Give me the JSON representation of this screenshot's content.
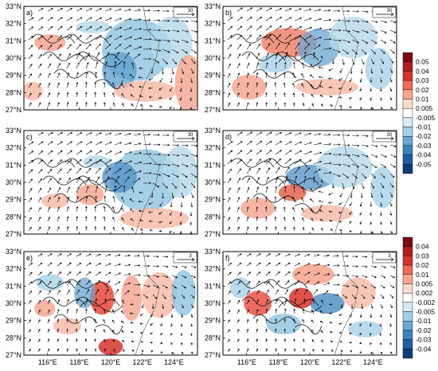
{
  "panels": [
    {
      "label": "a)",
      "ref_vector": "30",
      "pattern": "cyclone-large"
    },
    {
      "label": "b)",
      "ref_vector": "30",
      "pattern": "cyclone-small"
    },
    {
      "label": "c)",
      "ref_vector": "30",
      "pattern": "cyclone-large"
    },
    {
      "label": "d)",
      "ref_vector": "30",
      "pattern": "cyclone-small"
    },
    {
      "label": "e)",
      "ref_vector": "3",
      "pattern": "eddy"
    },
    {
      "label": "f)",
      "ref_vector": "3",
      "pattern": "eddy"
    }
  ],
  "lat_labels": [
    "33°N",
    "32°N",
    "31°N",
    "30°N",
    "29°N",
    "28°N",
    "27°N"
  ],
  "lon_labels": [
    "116°E",
    "118°E",
    "120°E",
    "122°E",
    "124°E"
  ],
  "colorbar_top": {
    "labels": [
      "0.05",
      "0.04",
      "0.03",
      "0.02",
      "0.01",
      "0.005",
      "-0.005",
      "-0.01",
      "-0.02",
      "-0.03",
      "-0.04",
      "-0.05"
    ],
    "colors": [
      "#7a0a0f",
      "#b41b1f",
      "#d8322c",
      "#ef6a55",
      "#f8a68c",
      "#fddbc8",
      "#ffffff",
      "#d6ebf5",
      "#a3cfe4",
      "#69a8d0",
      "#3b82bc",
      "#1f5ea6",
      "#0d3d7a"
    ]
  },
  "colorbar_bottom": {
    "labels": [
      "0.04",
      "0.03",
      "0.02",
      "0.01",
      "0.005",
      "0.002",
      "-0.002",
      "-0.005",
      "-0.01",
      "-0.02",
      "-0.03",
      "-0.04"
    ],
    "colors": [
      "#7a0a0f",
      "#b41b1f",
      "#d8322c",
      "#ef6a55",
      "#f8a68c",
      "#fddbc8",
      "#ffffff",
      "#d6ebf5",
      "#a3cfe4",
      "#69a8d0",
      "#3b82bc",
      "#1f5ea6",
      "#0d3d7a"
    ]
  },
  "colors": {
    "frame": "#000000",
    "vector": "#000000",
    "contour": "#000000"
  }
}
